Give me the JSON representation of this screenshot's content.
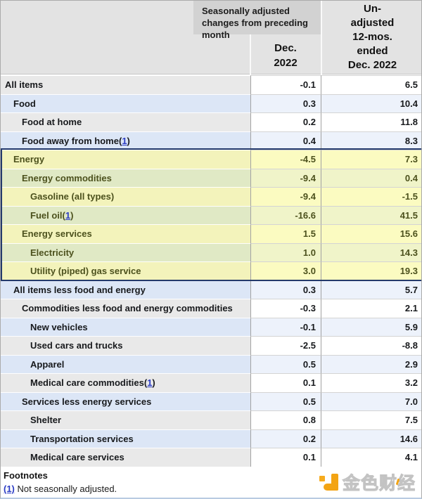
{
  "header": {
    "seasonal_label": "Seasonally adjusted changes from preceding month",
    "dec_lines": [
      "Dec.",
      "2022"
    ],
    "unadj_lines": [
      "Un-",
      "adjusted",
      "12-mos.",
      "ended",
      "Dec. 2022"
    ]
  },
  "table": {
    "rows": [
      {
        "label": "All items",
        "indent": 0,
        "stripe": "gray",
        "energy": false,
        "footnote": false,
        "dec": "-0.1",
        "yr": "6.5"
      },
      {
        "label": "Food",
        "indent": 1,
        "stripe": "blue",
        "energy": false,
        "footnote": false,
        "dec": "0.3",
        "yr": "10.4"
      },
      {
        "label": "Food at home",
        "indent": 2,
        "stripe": "gray",
        "energy": false,
        "footnote": false,
        "dec": "0.2",
        "yr": "11.8"
      },
      {
        "label": "Food away from home",
        "indent": 2,
        "stripe": "blue",
        "energy": false,
        "footnote": true,
        "dec": "0.4",
        "yr": "8.3"
      },
      {
        "label": "Energy",
        "indent": 1,
        "stripe": "gray",
        "energy": true,
        "footnote": false,
        "dec": "-4.5",
        "yr": "7.3"
      },
      {
        "label": "Energy commodities",
        "indent": 2,
        "stripe": "blue",
        "energy": true,
        "footnote": false,
        "dec": "-9.4",
        "yr": "0.4"
      },
      {
        "label": "Gasoline (all types)",
        "indent": 3,
        "stripe": "gray",
        "energy": true,
        "footnote": false,
        "dec": "-9.4",
        "yr": "-1.5"
      },
      {
        "label": "Fuel oil",
        "indent": 3,
        "stripe": "blue",
        "energy": true,
        "footnote": true,
        "dec": "-16.6",
        "yr": "41.5"
      },
      {
        "label": "Energy services",
        "indent": 2,
        "stripe": "gray",
        "energy": true,
        "footnote": false,
        "dec": "1.5",
        "yr": "15.6"
      },
      {
        "label": "Electricity",
        "indent": 3,
        "stripe": "blue",
        "energy": true,
        "footnote": false,
        "dec": "1.0",
        "yr": "14.3"
      },
      {
        "label": "Utility (piped) gas service",
        "indent": 3,
        "stripe": "gray",
        "energy": true,
        "footnote": false,
        "dec": "3.0",
        "yr": "19.3"
      },
      {
        "label": "All items less food and energy",
        "indent": 1,
        "stripe": "blue",
        "energy": false,
        "footnote": false,
        "dec": "0.3",
        "yr": "5.7"
      },
      {
        "label": "Commodities less food and energy commodities",
        "indent": 2,
        "stripe": "gray",
        "energy": false,
        "footnote": false,
        "dec": "-0.3",
        "yr": "2.1"
      },
      {
        "label": "New vehicles",
        "indent": 3,
        "stripe": "blue",
        "energy": false,
        "footnote": false,
        "dec": "-0.1",
        "yr": "5.9"
      },
      {
        "label": "Used cars and trucks",
        "indent": 3,
        "stripe": "gray",
        "energy": false,
        "footnote": false,
        "dec": "-2.5",
        "yr": "-8.8"
      },
      {
        "label": "Apparel",
        "indent": 3,
        "stripe": "blue",
        "energy": false,
        "footnote": false,
        "dec": "0.5",
        "yr": "2.9"
      },
      {
        "label": "Medical care commodities",
        "indent": 3,
        "stripe": "gray",
        "energy": false,
        "footnote": true,
        "dec": "0.1",
        "yr": "3.2"
      },
      {
        "label": "Services less energy services",
        "indent": 2,
        "stripe": "blue",
        "energy": false,
        "footnote": false,
        "dec": "0.5",
        "yr": "7.0"
      },
      {
        "label": "Shelter",
        "indent": 3,
        "stripe": "gray",
        "energy": false,
        "footnote": false,
        "dec": "0.8",
        "yr": "7.5"
      },
      {
        "label": "Transportation services",
        "indent": 3,
        "stripe": "blue",
        "energy": false,
        "footnote": false,
        "dec": "0.2",
        "yr": "14.6"
      },
      {
        "label": "Medical care services",
        "indent": 3,
        "stripe": "gray",
        "energy": false,
        "footnote": false,
        "dec": "0.1",
        "yr": "4.1"
      }
    ],
    "footnote_marker_inline": "1"
  },
  "footnotes": {
    "title": "Footnotes",
    "marker": "(1)",
    "text": "Not seasonally adjusted."
  },
  "watermark": {
    "text": "金色财经"
  },
  "colors": {
    "energy_highlight": "#fbfbc1",
    "energy_border": "#243a6b",
    "energy_text": "#4c511d",
    "stripe_blue_label": "#dce6f6",
    "stripe_gray_label": "#e9e9e9",
    "link_blue": "#2b3cc4",
    "watermark_orange": "#f3a414"
  }
}
